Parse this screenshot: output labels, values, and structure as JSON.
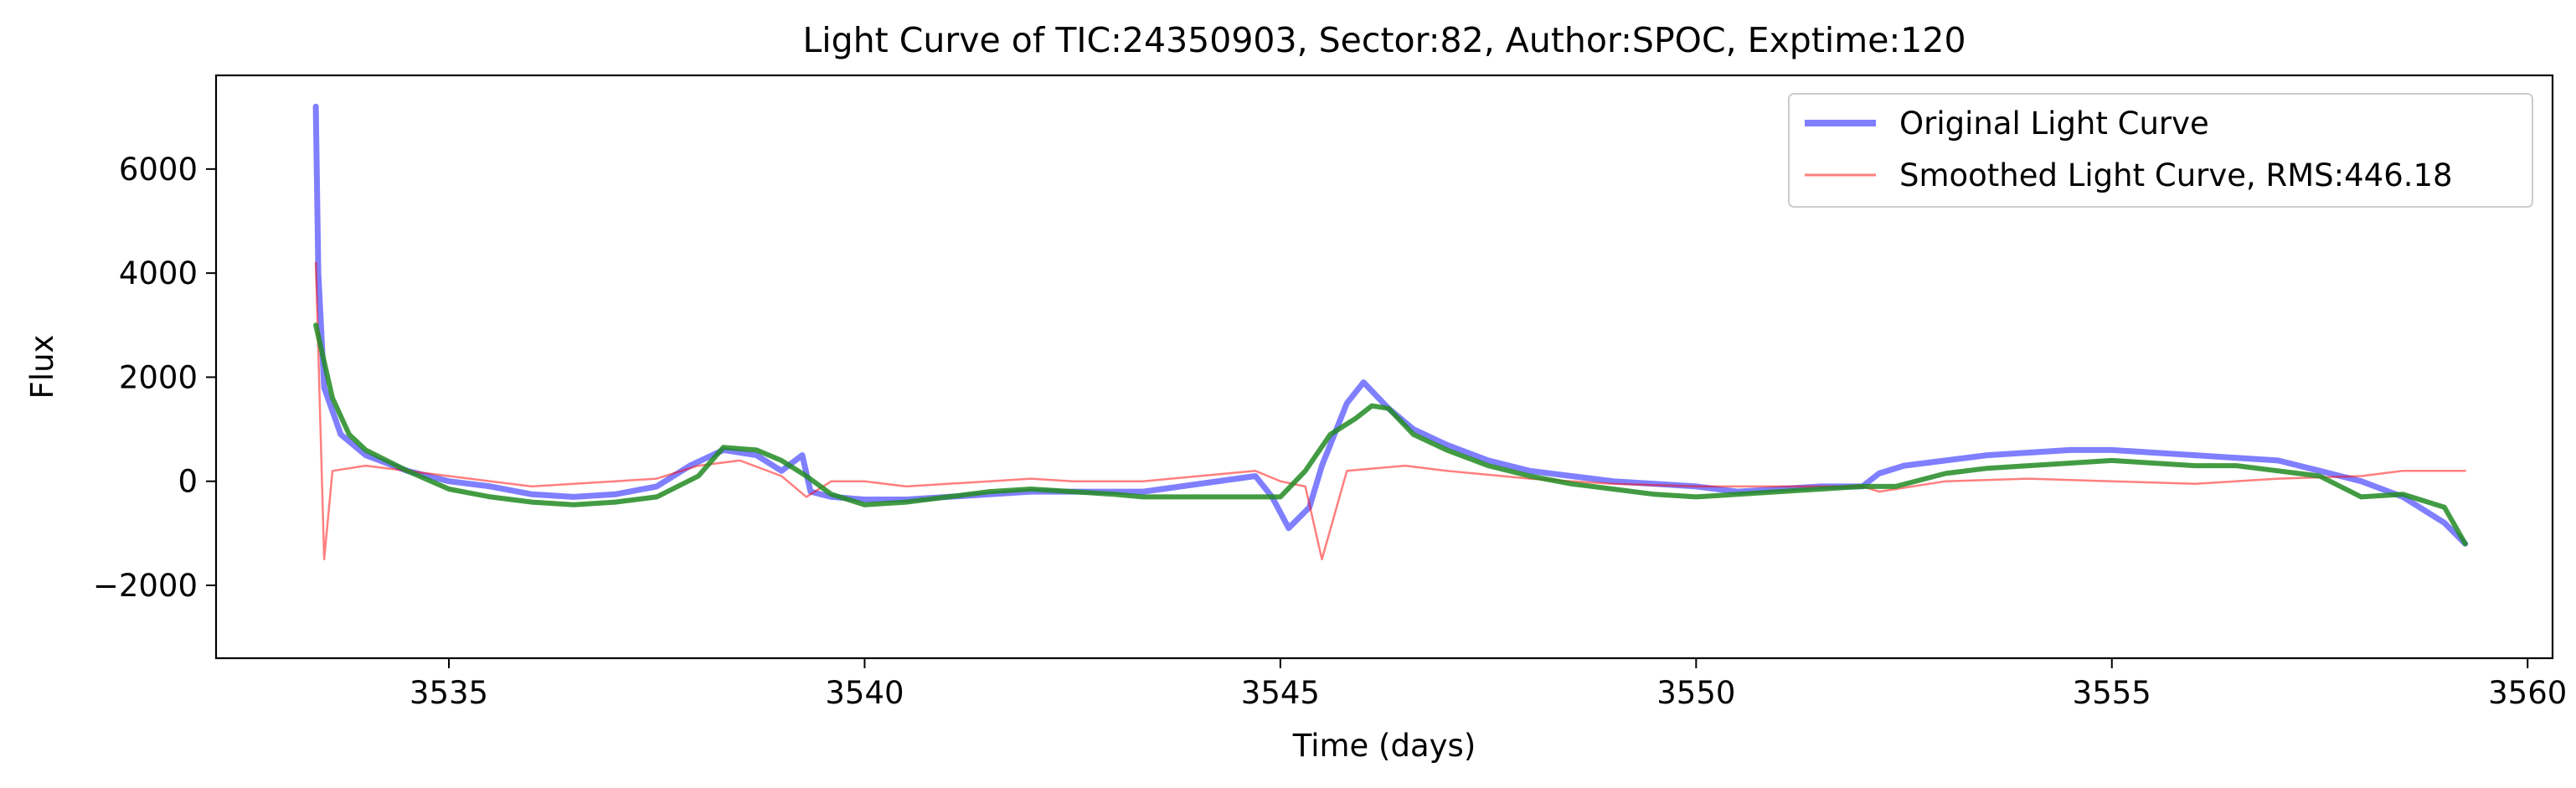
{
  "chart_data": {
    "type": "line",
    "title": "Light Curve of TIC:24350903, Sector:82, Author:SPOC, Exptime:120",
    "xlabel": "Time (days)",
    "ylabel": "Flux",
    "xlim": [
      3532.2,
      3560.3
    ],
    "ylim": [
      -3400,
      7800
    ],
    "xticks": [
      3535,
      3540,
      3545,
      3550,
      3555,
      3560
    ],
    "yticks": [
      -2000,
      0,
      2000,
      4000,
      6000
    ],
    "ytick_labels": [
      "−2000",
      "0",
      "2000",
      "4000",
      "6000"
    ],
    "grid": false,
    "legend_position": "top-right",
    "series": [
      {
        "name": "Original Light Curve",
        "color": "#0000ff",
        "opacity": 0.5,
        "style": "thick-line",
        "x": [
          3533.4,
          3533.43,
          3533.5,
          3533.7,
          3534.0,
          3534.5,
          3535.0,
          3535.5,
          3536.0,
          3536.5,
          3537.0,
          3537.5,
          3537.9,
          3538.3,
          3538.7,
          3539.0,
          3539.25,
          3539.35,
          3539.6,
          3540.0,
          3540.5,
          3541.0,
          3541.5,
          3542.0,
          3542.5,
          3543.0,
          3543.35,
          3544.7,
          3544.9,
          3545.1,
          3545.35,
          3545.5,
          3545.8,
          3546.0,
          3546.3,
          3546.6,
          3547.0,
          3547.5,
          3548.0,
          3548.5,
          3549.0,
          3549.5,
          3550.0,
          3550.5,
          3551.0,
          3551.5,
          3552.0,
          3552.2,
          3552.5,
          3553.0,
          3553.5,
          3554.0,
          3554.5,
          3555.0,
          3555.5,
          3556.0,
          3556.5,
          3557.0,
          3557.5,
          3558.0,
          3558.5,
          3559.0,
          3559.25
        ],
        "values": [
          7200,
          4000,
          1800,
          900,
          500,
          200,
          0,
          -100,
          -250,
          -300,
          -250,
          -100,
          300,
          600,
          500,
          200,
          500,
          -200,
          -300,
          -350,
          -350,
          -300,
          -250,
          -200,
          -200,
          -200,
          -200,
          100,
          -300,
          -900,
          -500,
          300,
          1500,
          1900,
          1400,
          1000,
          700,
          400,
          200,
          100,
          0,
          -50,
          -100,
          -200,
          -150,
          -100,
          -100,
          150,
          300,
          400,
          500,
          550,
          600,
          600,
          550,
          500,
          450,
          400,
          200,
          0,
          -300,
          -800,
          -1200
        ]
      },
      {
        "name": "Smoothed Light Curve, RMS:446.18",
        "color": "#ff0000",
        "opacity": 0.5,
        "style": "thin-line",
        "x": [
          3533.4,
          3533.5,
          3533.6,
          3534.0,
          3534.5,
          3535.0,
          3535.5,
          3536.0,
          3536.5,
          3537.0,
          3537.5,
          3538.0,
          3538.5,
          3539.0,
          3539.3,
          3539.6,
          3540.0,
          3540.5,
          3541.0,
          3541.5,
          3542.0,
          3542.5,
          3543.0,
          3543.35,
          3544.7,
          3545.0,
          3545.3,
          3545.5,
          3545.8,
          3546.5,
          3547.0,
          3548.0,
          3549.0,
          3550.0,
          3551.0,
          3552.0,
          3552.2,
          3553.0,
          3554.0,
          3555.0,
          3556.0,
          3557.0,
          3558.0,
          3558.5,
          3559.25
        ],
        "values": [
          4200,
          -1500,
          200,
          300,
          200,
          100,
          0,
          -100,
          -50,
          0,
          50,
          300,
          400,
          100,
          -300,
          0,
          0,
          -100,
          -50,
          0,
          50,
          0,
          0,
          0,
          200,
          0,
          -100,
          -1500,
          200,
          300,
          200,
          50,
          -50,
          -100,
          -100,
          -100,
          -200,
          0,
          50,
          0,
          -50,
          50,
          100,
          200,
          200
        ]
      },
      {
        "name": "",
        "color": "#228b22",
        "opacity": 0.85,
        "style": "trend-line",
        "x": [
          3533.4,
          3533.6,
          3533.8,
          3534.0,
          3534.5,
          3535.0,
          3535.5,
          3536.0,
          3536.5,
          3537.0,
          3537.5,
          3538.0,
          3538.3,
          3538.7,
          3539.0,
          3539.3,
          3539.6,
          3540.0,
          3540.5,
          3541.0,
          3541.5,
          3542.0,
          3542.5,
          3543.0,
          3543.35,
          3544.7,
          3545.0,
          3545.3,
          3545.6,
          3545.9,
          3546.1,
          3546.3,
          3546.6,
          3547.0,
          3547.5,
          3548.0,
          3548.5,
          3549.0,
          3549.5,
          3550.0,
          3550.5,
          3551.0,
          3551.5,
          3552.0,
          3552.4,
          3553.0,
          3553.5,
          3554.0,
          3554.5,
          3555.0,
          3555.5,
          3556.0,
          3556.5,
          3557.0,
          3557.5,
          3558.0,
          3558.5,
          3559.0,
          3559.25
        ],
        "values": [
          3000,
          1600,
          900,
          600,
          200,
          -150,
          -300,
          -400,
          -450,
          -400,
          -300,
          100,
          650,
          600,
          400,
          100,
          -250,
          -450,
          -400,
          -300,
          -200,
          -150,
          -200,
          -250,
          -300,
          -300,
          -300,
          200,
          900,
          1200,
          1450,
          1400,
          900,
          600,
          300,
          100,
          -50,
          -150,
          -250,
          -300,
          -250,
          -200,
          -150,
          -100,
          -100,
          150,
          250,
          300,
          350,
          400,
          350,
          300,
          300,
          200,
          100,
          -300,
          -250,
          -500,
          -1200
        ]
      }
    ]
  }
}
